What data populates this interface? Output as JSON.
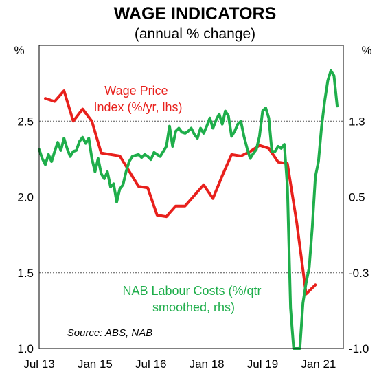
{
  "chart_data": {
    "type": "line",
    "title": "WAGE INDICATORS",
    "subtitle": "(annual % change)",
    "left_unit": "%",
    "right_unit": "%",
    "x_tick_labels": [
      "Jul 13",
      "Jan 15",
      "Jul 16",
      "Jan 18",
      "Jul 19",
      "Jan 21"
    ],
    "x_tick_dates": [
      "2013-07",
      "2015-01",
      "2016-07",
      "2018-01",
      "2019-07",
      "2021-01"
    ],
    "xlim": [
      "2013-07",
      "2021-09"
    ],
    "ylim_left": [
      1.0,
      3.0
    ],
    "left_ticks": [
      "1.0",
      "1.5",
      "2.0",
      "2.5"
    ],
    "ylim_right": [
      -1.0,
      2.0
    ],
    "right_ticks": [
      "-1.0",
      "-0.3",
      "0.5",
      "1.3"
    ],
    "gridlines": "dotted at left ticks",
    "series": [
      {
        "name": "Wage Price Index (%/yr, lhs)",
        "label_lines": [
          "Wage Price",
          "Index (%/yr, lhs)"
        ],
        "axis": "left",
        "color": "#e8201c",
        "points": [
          [
            "2013-09",
            2.65
          ],
          [
            "2013-12",
            2.63
          ],
          [
            "2014-03",
            2.7
          ],
          [
            "2014-06",
            2.5
          ],
          [
            "2014-09",
            2.58
          ],
          [
            "2014-12",
            2.5
          ],
          [
            "2015-03",
            2.29
          ],
          [
            "2015-06",
            2.28
          ],
          [
            "2015-09",
            2.27
          ],
          [
            "2015-12",
            2.17
          ],
          [
            "2016-03",
            2.07
          ],
          [
            "2016-06",
            2.06
          ],
          [
            "2016-09",
            1.88
          ],
          [
            "2016-12",
            1.87
          ],
          [
            "2017-03",
            1.94
          ],
          [
            "2017-06",
            1.94
          ],
          [
            "2017-09",
            2.01
          ],
          [
            "2017-12",
            2.08
          ],
          [
            "2018-03",
            1.99
          ],
          [
            "2018-06",
            2.14
          ],
          [
            "2018-09",
            2.28
          ],
          [
            "2018-12",
            2.27
          ],
          [
            "2019-03",
            2.3
          ],
          [
            "2019-06",
            2.34
          ],
          [
            "2019-09",
            2.32
          ],
          [
            "2019-12",
            2.23
          ],
          [
            "2020-03",
            2.22
          ],
          [
            "2020-06",
            1.83
          ],
          [
            "2020-09",
            1.36
          ],
          [
            "2020-12",
            1.42
          ]
        ]
      },
      {
        "name": "NAB Labour Costs (%/qtr smoothed, rhs)",
        "label_lines": [
          "NAB Labour Costs (%/qtr",
          "smoothed, rhs)"
        ],
        "axis": "right",
        "color": "#1fae4b",
        "points": [
          [
            "2013-07",
            0.97
          ],
          [
            "2013-08",
            0.88
          ],
          [
            "2013-09",
            0.82
          ],
          [
            "2013-10",
            0.92
          ],
          [
            "2013-11",
            0.85
          ],
          [
            "2013-12",
            0.95
          ],
          [
            "2014-01",
            1.04
          ],
          [
            "2014-02",
            0.96
          ],
          [
            "2014-03",
            1.08
          ],
          [
            "2014-04",
            0.98
          ],
          [
            "2014-05",
            0.9
          ],
          [
            "2014-06",
            0.95
          ],
          [
            "2014-07",
            0.96
          ],
          [
            "2014-08",
            1.05
          ],
          [
            "2014-09",
            1.09
          ],
          [
            "2014-10",
            1.03
          ],
          [
            "2014-11",
            1.08
          ],
          [
            "2014-12",
            0.88
          ],
          [
            "2015-01",
            0.75
          ],
          [
            "2015-02",
            0.88
          ],
          [
            "2015-03",
            0.73
          ],
          [
            "2015-04",
            0.68
          ],
          [
            "2015-05",
            0.75
          ],
          [
            "2015-06",
            0.6
          ],
          [
            "2015-07",
            0.63
          ],
          [
            "2015-08",
            0.45
          ],
          [
            "2015-09",
            0.58
          ],
          [
            "2015-10",
            0.62
          ],
          [
            "2015-11",
            0.75
          ],
          [
            "2015-12",
            0.85
          ],
          [
            "2016-01",
            0.9
          ],
          [
            "2016-02",
            0.91
          ],
          [
            "2016-03",
            0.92
          ],
          [
            "2016-04",
            0.89
          ],
          [
            "2016-05",
            0.92
          ],
          [
            "2016-06",
            0.9
          ],
          [
            "2016-07",
            0.87
          ],
          [
            "2016-08",
            0.94
          ],
          [
            "2016-09",
            0.92
          ],
          [
            "2016-10",
            0.9
          ],
          [
            "2016-11",
            0.95
          ],
          [
            "2016-12",
            1.0
          ],
          [
            "2017-01",
            1.2
          ],
          [
            "2017-02",
            1.0
          ],
          [
            "2017-03",
            1.15
          ],
          [
            "2017-04",
            1.18
          ],
          [
            "2017-05",
            1.14
          ],
          [
            "2017-06",
            1.13
          ],
          [
            "2017-07",
            1.15
          ],
          [
            "2017-08",
            1.18
          ],
          [
            "2017-09",
            1.12
          ],
          [
            "2017-10",
            1.08
          ],
          [
            "2017-11",
            1.18
          ],
          [
            "2017-12",
            1.13
          ],
          [
            "2018-01",
            1.2
          ],
          [
            "2018-02",
            1.28
          ],
          [
            "2018-03",
            1.18
          ],
          [
            "2018-04",
            1.26
          ],
          [
            "2018-05",
            1.32
          ],
          [
            "2018-06",
            1.22
          ],
          [
            "2018-07",
            1.35
          ],
          [
            "2018-08",
            1.3
          ],
          [
            "2018-09",
            1.1
          ],
          [
            "2018-10",
            1.15
          ],
          [
            "2018-11",
            1.22
          ],
          [
            "2018-12",
            1.25
          ],
          [
            "2019-01",
            1.1
          ],
          [
            "2019-02",
            0.98
          ],
          [
            "2019-03",
            0.88
          ],
          [
            "2019-04",
            0.93
          ],
          [
            "2019-05",
            0.97
          ],
          [
            "2019-06",
            1.1
          ],
          [
            "2019-07",
            1.35
          ],
          [
            "2019-08",
            1.38
          ],
          [
            "2019-09",
            1.28
          ],
          [
            "2019-10",
            0.95
          ],
          [
            "2019-11",
            0.95
          ],
          [
            "2019-12",
            1.0
          ],
          [
            "2020-01",
            0.98
          ],
          [
            "2020-02",
            1.02
          ],
          [
            "2020-03",
            0.6
          ],
          [
            "2020-04",
            -0.6
          ],
          [
            "2020-05",
            -1.0
          ],
          [
            "2020-06",
            -1.0
          ],
          [
            "2020-07",
            -1.0
          ],
          [
            "2020-08",
            -0.55
          ],
          [
            "2020-09",
            -0.35
          ],
          [
            "2020-10",
            -0.2
          ],
          [
            "2020-11",
            0.2
          ],
          [
            "2020-12",
            0.7
          ],
          [
            "2021-01",
            0.85
          ],
          [
            "2021-02",
            1.2
          ],
          [
            "2021-03",
            1.45
          ],
          [
            "2021-04",
            1.65
          ],
          [
            "2021-05",
            1.75
          ],
          [
            "2021-06",
            1.7
          ],
          [
            "2021-07",
            1.4
          ]
        ]
      }
    ],
    "source": "Source: ABS, NAB"
  }
}
